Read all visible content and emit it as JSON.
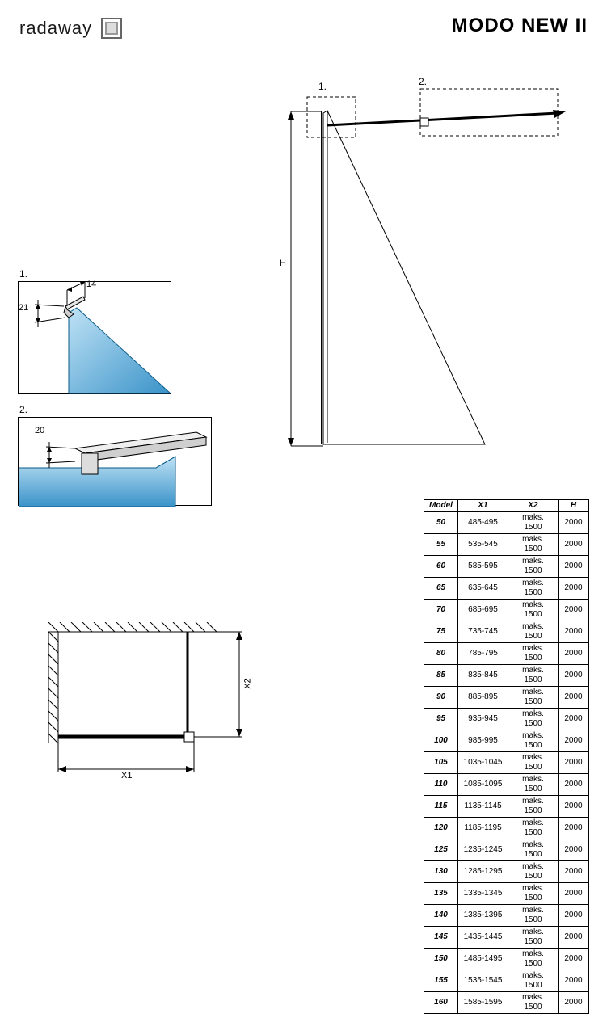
{
  "brand": "radaway",
  "title": "MODO NEW  II",
  "glass_fill": "#7ab8e0",
  "glass_stroke": "#0a5a8a",
  "line_color": "#000000",
  "callouts": {
    "one": "1.",
    "two": "2."
  },
  "detail1": {
    "w": "14",
    "h": "21"
  },
  "detail2": {
    "h": "20"
  },
  "main": {
    "height_label": "H"
  },
  "plan_dims": {
    "x1": "X1",
    "x2": "X2"
  },
  "table": {
    "headers": [
      "Model",
      "X1",
      "X2",
      "H"
    ],
    "rows": [
      [
        "50",
        "485-495",
        "maks. 1500",
        "2000"
      ],
      [
        "55",
        "535-545",
        "maks. 1500",
        "2000"
      ],
      [
        "60",
        "585-595",
        "maks. 1500",
        "2000"
      ],
      [
        "65",
        "635-645",
        "maks. 1500",
        "2000"
      ],
      [
        "70",
        "685-695",
        "maks. 1500",
        "2000"
      ],
      [
        "75",
        "735-745",
        "maks. 1500",
        "2000"
      ],
      [
        "80",
        "785-795",
        "maks. 1500",
        "2000"
      ],
      [
        "85",
        "835-845",
        "maks. 1500",
        "2000"
      ],
      [
        "90",
        "885-895",
        "maks. 1500",
        "2000"
      ],
      [
        "95",
        "935-945",
        "maks. 1500",
        "2000"
      ],
      [
        "100",
        "985-995",
        "maks. 1500",
        "2000"
      ],
      [
        "105",
        "1035-1045",
        "maks. 1500",
        "2000"
      ],
      [
        "110",
        "1085-1095",
        "maks. 1500",
        "2000"
      ],
      [
        "115",
        "1135-1145",
        "maks. 1500",
        "2000"
      ],
      [
        "120",
        "1185-1195",
        "maks. 1500",
        "2000"
      ],
      [
        "125",
        "1235-1245",
        "maks. 1500",
        "2000"
      ],
      [
        "130",
        "1285-1295",
        "maks. 1500",
        "2000"
      ],
      [
        "135",
        "1335-1345",
        "maks. 1500",
        "2000"
      ],
      [
        "140",
        "1385-1395",
        "maks. 1500",
        "2000"
      ],
      [
        "145",
        "1435-1445",
        "maks. 1500",
        "2000"
      ],
      [
        "150",
        "1485-1495",
        "maks. 1500",
        "2000"
      ],
      [
        "155",
        "1535-1545",
        "maks. 1500",
        "2000"
      ],
      [
        "160",
        "1585-1595",
        "maks. 1500",
        "2000"
      ]
    ]
  }
}
